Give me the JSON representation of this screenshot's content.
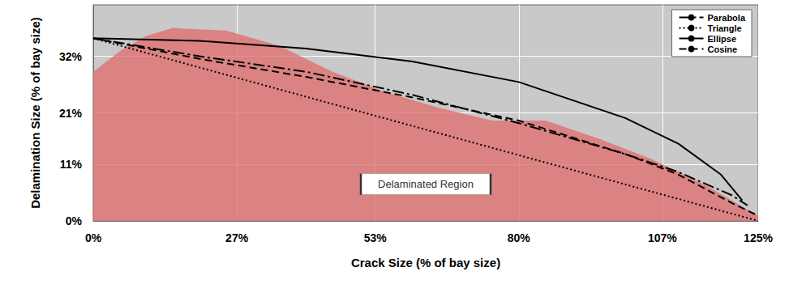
{
  "chart_data": {
    "type": "line",
    "x_label": "Crack Size (% of bay size)",
    "y_label": "Delamination Size (% of bay size)",
    "xlim": [
      0,
      125
    ],
    "xticks": [
      {
        "value": 0,
        "label": "0%"
      },
      {
        "value": 27,
        "label": "27%"
      },
      {
        "value": 53,
        "label": "53%"
      },
      {
        "value": 80,
        "label": "80%"
      },
      {
        "value": 107,
        "label": "107%"
      },
      {
        "value": 125,
        "label": "125%"
      }
    ],
    "ylim": [
      0,
      42
    ],
    "yticks": [
      {
        "value": 0,
        "label": "0%"
      },
      {
        "value": 11,
        "label": "11%"
      },
      {
        "value": 21,
        "label": "21%"
      },
      {
        "value": 32,
        "label": "32%"
      }
    ],
    "grid": true,
    "legend": "upper right",
    "region": {
      "label": "Delaminated Region",
      "color": "#e07070",
      "x": [
        0,
        5,
        10,
        15,
        25,
        35,
        45,
        55,
        65,
        75,
        85,
        95,
        105,
        115,
        120,
        125
      ],
      "values": [
        29,
        33,
        36,
        37.5,
        37,
        34,
        29,
        25,
        22,
        19.5,
        19.5,
        16,
        12,
        7,
        4,
        1
      ]
    },
    "series": [
      {
        "name": "Parabola",
        "color": "#000000",
        "line_style": "dashdot",
        "x": [
          0,
          20,
          40,
          60,
          80,
          100,
          110,
          120,
          123
        ],
        "values": [
          35.5,
          32,
          29,
          24.5,
          19,
          13,
          9.5,
          5,
          3
        ]
      },
      {
        "name": "Triangle",
        "color": "#000000",
        "line_style": "dotted",
        "x": [
          0,
          125
        ],
        "values": [
          35.5,
          0
        ]
      },
      {
        "name": "Ellipse",
        "color": "#000000",
        "line_style": "solid",
        "x": [
          0,
          20,
          40,
          60,
          80,
          100,
          110,
          118,
          122
        ],
        "values": [
          35.5,
          35,
          33.5,
          31,
          27,
          20,
          15,
          9,
          4
        ]
      },
      {
        "name": "Cosine",
        "color": "#000000",
        "line_style": "dashed",
        "x": [
          0,
          20,
          40,
          60,
          80,
          100,
          110,
          120,
          125
        ],
        "values": [
          35.5,
          31.5,
          28,
          24,
          19.5,
          13,
          9,
          3.5,
          1
        ]
      }
    ]
  }
}
